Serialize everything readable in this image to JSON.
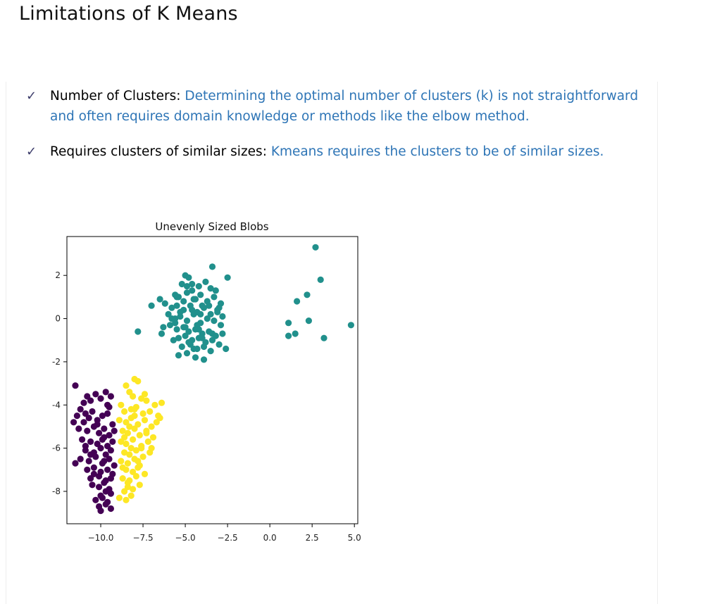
{
  "slide": {
    "title": "Limitations of K Means",
    "check_glyph": "✓",
    "bullets": [
      {
        "label": "Number of Clusters",
        "separator": ": ",
        "text": "Determining the optimal number of clusters (k) is not straightforward and often requires domain knowledge or methods like the elbow method."
      },
      {
        "label": "Requires clusters of similar sizes",
        "separator": ": ",
        "text": "Kmeans requires the clusters to be of similar sizes."
      }
    ]
  },
  "chart_data": {
    "type": "scatter",
    "title": "Unevenly Sized Blobs",
    "xlabel": "",
    "ylabel": "",
    "xlim": [
      -12.0,
      5.2
    ],
    "ylim": [
      -9.5,
      3.8
    ],
    "xticks": [
      -10.0,
      -7.5,
      -5.0,
      -2.5,
      0.0,
      2.5,
      5.0
    ],
    "xtick_labels": [
      "−10.0",
      "−7.5",
      "−5.0",
      "−2.5",
      "0.0",
      "2.5",
      "5.0"
    ],
    "yticks": [
      2,
      0,
      -2,
      -4,
      -6,
      -8
    ],
    "ytick_labels": [
      "2",
      "0",
      "-2",
      "-4",
      "-6",
      "-8"
    ],
    "grid": false,
    "legend": "none",
    "series": [
      {
        "color": "#440154",
        "x": [
          -11.5,
          -11.0,
          -10.8,
          -10.6,
          -10.3,
          -10.0,
          -9.7,
          -9.4,
          -9.6,
          -11.2,
          -11.4,
          -10.9,
          -11.0,
          -10.7,
          -10.5,
          -10.2,
          -9.9,
          -9.6,
          -9.3,
          -11.3,
          -10.8,
          -10.4,
          -10.1,
          -9.8,
          -9.5,
          -9.2,
          -11.1,
          -10.6,
          -10.2,
          -9.9,
          -9.6,
          -9.3,
          -10.9,
          -10.4,
          -10.0,
          -9.7,
          -9.4,
          -11.2,
          -10.7,
          -10.3,
          -9.9,
          -9.5,
          -9.2,
          -11.5,
          -10.8,
          -10.4,
          -10.0,
          -9.6,
          -9.3,
          -10.6,
          -10.1,
          -9.7,
          -9.4,
          -10.5,
          -10.1,
          -9.8,
          -9.5,
          -10.0,
          -9.7,
          -9.4,
          -10.3,
          -9.9,
          -9.6,
          -10.1,
          -9.7,
          -9.4,
          -10.0,
          -10.4,
          -9.8,
          -9.5,
          -11.6,
          -10.9,
          -10.6,
          -10.2,
          -9.8
        ],
        "y": [
          -3.1,
          -3.9,
          -3.6,
          -3.8,
          -3.5,
          -3.7,
          -3.4,
          -3.6,
          -4.0,
          -4.2,
          -4.5,
          -4.4,
          -4.8,
          -4.6,
          -4.3,
          -4.7,
          -4.5,
          -4.4,
          -4.9,
          -5.1,
          -5.2,
          -5.0,
          -5.3,
          -5.1,
          -5.4,
          -5.2,
          -5.6,
          -5.7,
          -5.8,
          -5.6,
          -5.9,
          -5.7,
          -6.1,
          -6.2,
          -6.0,
          -6.3,
          -6.1,
          -6.5,
          -6.6,
          -6.4,
          -6.7,
          -6.5,
          -6.8,
          -6.7,
          -7.0,
          -6.9,
          -7.1,
          -7.0,
          -7.2,
          -7.4,
          -7.3,
          -7.5,
          -7.4,
          -7.7,
          -7.8,
          -7.6,
          -7.9,
          -8.2,
          -8.0,
          -8.1,
          -8.4,
          -8.3,
          -8.5,
          -8.7,
          -8.6,
          -8.8,
          -8.9,
          -7.2,
          -5.5,
          -4.1,
          -4.8,
          -5.9,
          -6.3,
          -4.9,
          -6.6
        ],
        "r": 4.6
      },
      {
        "color": "#fde725",
        "x": [
          -8.0,
          -7.8,
          -8.5,
          -8.3,
          -8.1,
          -7.6,
          -7.3,
          -6.8,
          -6.4,
          -8.8,
          -8.6,
          -8.2,
          -7.9,
          -7.5,
          -7.1,
          -6.6,
          -8.9,
          -8.5,
          -8.2,
          -7.8,
          -7.4,
          -7.0,
          -6.7,
          -8.7,
          -8.4,
          -8.0,
          -7.7,
          -7.3,
          -6.9,
          -8.8,
          -8.5,
          -8.1,
          -7.6,
          -7.2,
          -8.6,
          -8.3,
          -7.9,
          -7.5,
          -7.1,
          -8.8,
          -8.4,
          -8.0,
          -7.7,
          -8.5,
          -8.1,
          -7.8,
          -7.4,
          -8.7,
          -8.3,
          -7.9,
          -8.4,
          -8.1,
          -7.7,
          -8.6,
          -8.2,
          -8.9,
          -8.5,
          -8.3,
          -8.0,
          -8.6,
          -8.2,
          -7.6,
          -7.0,
          -6.5,
          -7.3,
          -7.8,
          -8.4,
          -8.0,
          -8.7,
          -7.4
        ],
        "y": [
          -2.8,
          -2.9,
          -3.1,
          -3.4,
          -3.6,
          -3.7,
          -3.8,
          -4.0,
          -3.9,
          -4.0,
          -4.3,
          -4.2,
          -4.1,
          -4.4,
          -4.3,
          -4.5,
          -4.7,
          -4.8,
          -4.6,
          -4.9,
          -4.7,
          -5.0,
          -4.8,
          -5.2,
          -5.3,
          -5.1,
          -5.4,
          -5.2,
          -5.5,
          -5.7,
          -5.8,
          -5.6,
          -5.9,
          -5.7,
          -6.2,
          -6.3,
          -6.1,
          -6.4,
          -6.2,
          -6.6,
          -6.7,
          -6.5,
          -6.8,
          -7.0,
          -7.1,
          -6.9,
          -7.2,
          -7.4,
          -7.5,
          -7.3,
          -7.8,
          -7.9,
          -7.7,
          -8.0,
          -8.2,
          -8.3,
          -8.4,
          -5.0,
          -4.5,
          -5.5,
          -6.0,
          -6.0,
          -6.0,
          -4.6,
          -5.3,
          -6.6,
          -7.6,
          -4.2,
          -6.9,
          -3.5
        ],
        "r": 4.6
      },
      {
        "color": "#21908c",
        "x": [
          -5.0,
          -4.8,
          -3.4,
          -2.5,
          -5.2,
          -4.6,
          -4.2,
          -3.8,
          -3.5,
          -3.2,
          -5.6,
          -5.4,
          -4.9,
          -4.5,
          -4.1,
          -3.7,
          -3.3,
          -2.9,
          -6.5,
          -6.2,
          -5.8,
          -5.5,
          -5.1,
          -4.7,
          -4.3,
          -3.9,
          -3.5,
          -3.1,
          -2.8,
          -7.0,
          -6.0,
          -5.6,
          -5.3,
          -4.9,
          -4.5,
          -4.1,
          -3.7,
          -3.3,
          -2.9,
          -6.3,
          -5.9,
          -5.5,
          -5.1,
          -4.8,
          -4.4,
          -4.0,
          -3.6,
          -3.2,
          -2.8,
          -7.8,
          -6.4,
          -5.4,
          -5.0,
          -4.6,
          -4.2,
          -3.8,
          -3.4,
          -3.0,
          -5.7,
          -5.2,
          -4.7,
          -4.3,
          -3.9,
          -3.5,
          -5.4,
          -4.9,
          -4.4,
          -3.9,
          -2.6,
          -5.1,
          -4.6,
          -4.0,
          -4.3,
          -5.6,
          -5.0,
          -4.4,
          -3.1,
          -4.0,
          -4.6,
          -5.3,
          -4.8,
          -4.2,
          -3.6,
          -5.8,
          -4.5,
          -3.4,
          -4.9,
          -5.5,
          -4.1,
          -3.0,
          2.7,
          3.0,
          2.2,
          1.6,
          1.1,
          2.3,
          1.5,
          1.1,
          3.2,
          4.8
        ],
        "y": [
          2.0,
          1.9,
          2.4,
          1.9,
          1.6,
          1.6,
          1.5,
          1.7,
          1.4,
          1.3,
          1.1,
          1.0,
          1.2,
          0.9,
          1.1,
          0.8,
          1.0,
          0.7,
          0.9,
          0.7,
          0.5,
          0.6,
          0.4,
          0.6,
          0.3,
          0.5,
          0.2,
          0.4,
          0.1,
          0.6,
          0.2,
          0.0,
          0.1,
          -0.1,
          0.2,
          -0.2,
          0.0,
          -0.1,
          -0.3,
          -0.4,
          -0.3,
          -0.5,
          -0.4,
          -0.6,
          -0.5,
          -0.7,
          -0.6,
          -0.8,
          -0.7,
          -0.6,
          -0.7,
          -0.9,
          -0.8,
          -1.0,
          -0.9,
          -1.1,
          -1.0,
          -1.2,
          -1.0,
          -1.3,
          -1.2,
          -1.4,
          -1.3,
          -1.5,
          -1.7,
          -1.6,
          -1.8,
          -1.9,
          -1.4,
          0.8,
          0.4,
          0.6,
          -0.3,
          -0.2,
          -0.4,
          0.9,
          0.3,
          -0.9,
          1.3,
          0.3,
          -1.1,
          -0.5,
          0.6,
          0.0,
          -1.4,
          -0.7,
          1.5,
          1.0,
          0.2,
          0.5,
          3.3,
          1.8,
          1.1,
          0.8,
          -0.2,
          -0.1,
          -0.7,
          -0.8,
          -0.9,
          -0.3
        ],
        "r": 4.6
      }
    ]
  }
}
